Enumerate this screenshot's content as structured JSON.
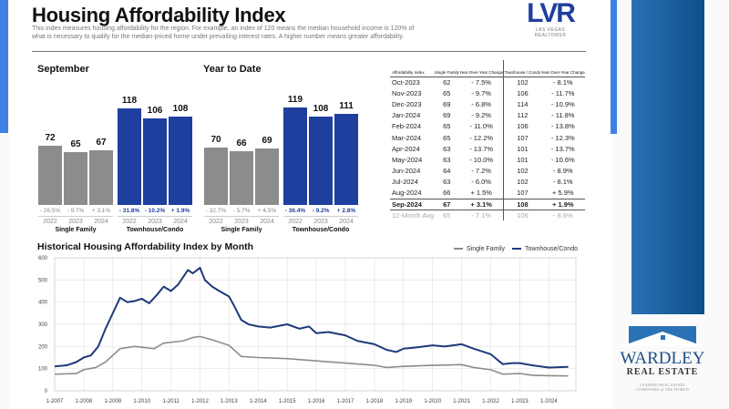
{
  "header": {
    "title": "Housing Affordability Index",
    "description": "This index measures housing affordability for the region. For example, an index of 120 means the median household income is 120% of what is necessary to qualify for the median-priced home under prevailing interest rates. A higher number means greater affordability.",
    "logo_text": "LVR",
    "logo_subtitle": "LAS VEGAS REALTORS®"
  },
  "sidebar_logo": {
    "name": "WARDLEY",
    "sub": "REAL ESTATE",
    "tagline": "LEADING REAL ESTATE COMPANIES of THE WORLD"
  },
  "chart_data": [
    {
      "type": "bar",
      "title": "September",
      "groups": [
        {
          "name": "Single Family",
          "categories": [
            "2022",
            "2023",
            "2024"
          ],
          "values": [
            72,
            65,
            67
          ],
          "changes": [
            "- 26.5%",
            "- 9.7%",
            "+ 3.1%"
          ]
        },
        {
          "name": "Townhouse/Condo",
          "categories": [
            "2022",
            "2023",
            "2024"
          ],
          "values": [
            118,
            106,
            108
          ],
          "changes": [
            "- 31.8%",
            "- 10.2%",
            "+ 1.9%"
          ]
        }
      ]
    },
    {
      "type": "bar",
      "title": "Year to Date",
      "groups": [
        {
          "name": "Single Family",
          "categories": [
            "2022",
            "2023",
            "2024"
          ],
          "values": [
            70,
            66,
            69
          ],
          "changes": [
            "- 32.7%",
            "- 5.7%",
            "+ 4.5%"
          ]
        },
        {
          "name": "Townhouse/Condo",
          "categories": [
            "2022",
            "2023",
            "2024"
          ],
          "values": [
            119,
            108,
            111
          ],
          "changes": [
            "- 36.4%",
            "- 9.2%",
            "+ 2.8%"
          ]
        }
      ]
    },
    {
      "type": "table",
      "headers": [
        "Affordability Index",
        "Single Family",
        "Year-Over-Year Change",
        "Townhouse / Condo",
        "Year-Over-Year Change"
      ],
      "rows": [
        [
          "Oct-2023",
          "62",
          "- 7.5%",
          "102",
          "- 8.1%"
        ],
        [
          "Nov-2023",
          "65",
          "- 9.7%",
          "106",
          "- 11.7%"
        ],
        [
          "Dec-2023",
          "69",
          "- 6.8%",
          "114",
          "- 10.9%"
        ],
        [
          "Jan-2024",
          "69",
          "- 9.2%",
          "112",
          "- 11.8%"
        ],
        [
          "Feb-2024",
          "65",
          "- 11.0%",
          "106",
          "- 13.8%"
        ],
        [
          "Mar-2024",
          "65",
          "- 12.2%",
          "107",
          "- 12.3%"
        ],
        [
          "Apr-2024",
          "63",
          "- 13.7%",
          "101",
          "- 13.7%"
        ],
        [
          "May-2024",
          "63",
          "- 10.0%",
          "101",
          "- 10.6%"
        ],
        [
          "Jun-2024",
          "64",
          "- 7.2%",
          "102",
          "- 8.9%"
        ],
        [
          "Jul-2024",
          "63",
          "- 6.0%",
          "102",
          "- 8.1%"
        ],
        [
          "Aug-2024",
          "66",
          "+ 1.5%",
          "107",
          "+ 5.9%"
        ],
        [
          "Sep-2024",
          "67",
          "+ 3.1%",
          "108",
          "+ 1.9%"
        ],
        [
          "12-Month Avg",
          "65",
          "- 7.1%",
          "106",
          "- 8.6%"
        ]
      ]
    },
    {
      "type": "line",
      "title": "Historical Housing Affordability Index by Month",
      "legend_position": "top-right",
      "grid": true,
      "ylim": [
        0,
        600
      ],
      "yticks": [
        "0",
        "100",
        "200",
        "300",
        "400",
        "500",
        "600"
      ],
      "xticks": [
        "1-2007",
        "1-2008",
        "1-2009",
        "1-2010",
        "1-2011",
        "1-2012",
        "1-2013",
        "1-2014",
        "1-2015",
        "1-2016",
        "1-2017",
        "1-2018",
        "1-2019",
        "1-2020",
        "1-2021",
        "1-2022",
        "1-2023",
        "1-2024"
      ],
      "series": [
        {
          "name": "Single Family",
          "color": "#8c8c8c",
          "points": [
            [
              "2007-01",
              75
            ],
            [
              "2007-10",
              78
            ],
            [
              "2008-01",
              95
            ],
            [
              "2008-06",
              105
            ],
            [
              "2008-10",
              130
            ],
            [
              "2009-04",
              190
            ],
            [
              "2009-10",
              200
            ],
            [
              "2010-06",
              190
            ],
            [
              "2010-10",
              215
            ],
            [
              "2011-06",
              225
            ],
            [
              "2011-10",
              240
            ],
            [
              "2012-01",
              245
            ],
            [
              "2012-06",
              230
            ],
            [
              "2013-01",
              205
            ],
            [
              "2013-06",
              155
            ],
            [
              "2014-01",
              150
            ],
            [
              "2015-01",
              145
            ],
            [
              "2016-01",
              135
            ],
            [
              "2017-01",
              125
            ],
            [
              "2018-01",
              115
            ],
            [
              "2018-06",
              105
            ],
            [
              "2019-01",
              110
            ],
            [
              "2020-01",
              115
            ],
            [
              "2021-01",
              118
            ],
            [
              "2021-06",
              105
            ],
            [
              "2022-01",
              95
            ],
            [
              "2022-06",
              75
            ],
            [
              "2023-01",
              78
            ],
            [
              "2023-06",
              70
            ],
            [
              "2024-01",
              68
            ],
            [
              "2024-09",
              67
            ]
          ]
        },
        {
          "name": "Townhouse/Condo",
          "color": "#1f3a7a",
          "points": [
            [
              "2007-01",
              110
            ],
            [
              "2007-06",
              115
            ],
            [
              "2007-10",
              130
            ],
            [
              "2008-01",
              150
            ],
            [
              "2008-04",
              160
            ],
            [
              "2008-07",
              200
            ],
            [
              "2008-10",
              280
            ],
            [
              "2009-01",
              350
            ],
            [
              "2009-04",
              420
            ],
            [
              "2009-07",
              400
            ],
            [
              "2009-10",
              405
            ],
            [
              "2010-01",
              415
            ],
            [
              "2010-04",
              395
            ],
            [
              "2010-07",
              430
            ],
            [
              "2010-10",
              470
            ],
            [
              "2011-01",
              450
            ],
            [
              "2011-04",
              480
            ],
            [
              "2011-08",
              545
            ],
            [
              "2011-10",
              530
            ],
            [
              "2012-01",
              555
            ],
            [
              "2012-03",
              500
            ],
            [
              "2012-06",
              470
            ],
            [
              "2012-09",
              450
            ],
            [
              "2013-01",
              425
            ],
            [
              "2013-03",
              385
            ],
            [
              "2013-06",
              320
            ],
            [
              "2013-09",
              300
            ],
            [
              "2014-01",
              290
            ],
            [
              "2014-06",
              285
            ],
            [
              "2015-01",
              300
            ],
            [
              "2015-06",
              280
            ],
            [
              "2015-10",
              290
            ],
            [
              "2016-01",
              260
            ],
            [
              "2016-06",
              265
            ],
            [
              "2017-01",
              250
            ],
            [
              "2017-06",
              225
            ],
            [
              "2018-01",
              210
            ],
            [
              "2018-06",
              185
            ],
            [
              "2018-10",
              175
            ],
            [
              "2019-01",
              190
            ],
            [
              "2019-06",
              195
            ],
            [
              "2020-01",
              205
            ],
            [
              "2020-06",
              200
            ],
            [
              "2021-01",
              210
            ],
            [
              "2021-06",
              190
            ],
            [
              "2022-01",
              165
            ],
            [
              "2022-06",
              120
            ],
            [
              "2022-10",
              125
            ],
            [
              "2023-01",
              125
            ],
            [
              "2023-06",
              115
            ],
            [
              "2024-01",
              105
            ],
            [
              "2024-09",
              108
            ]
          ]
        }
      ]
    }
  ]
}
